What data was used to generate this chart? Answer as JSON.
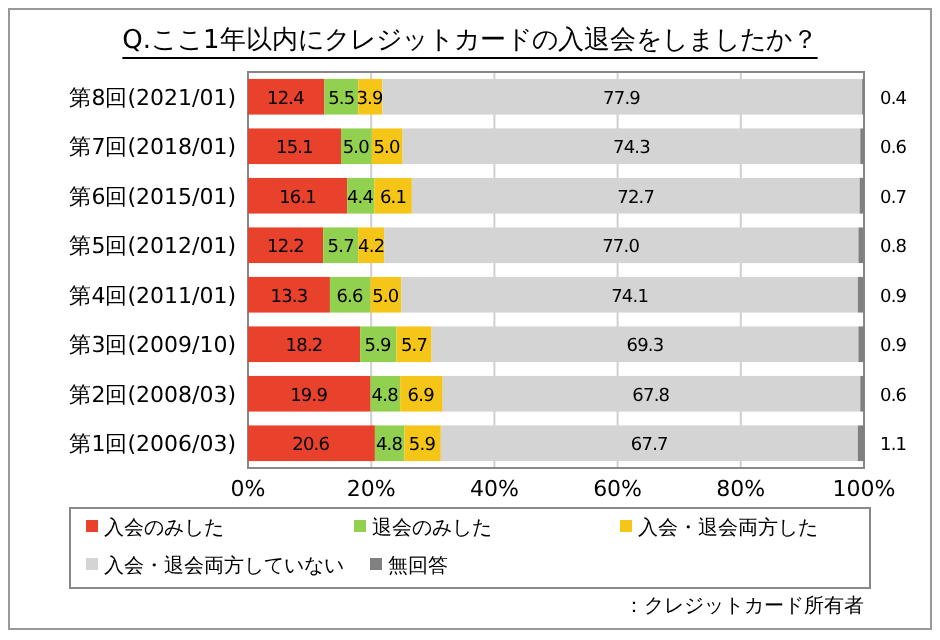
{
  "chart_data": {
    "type": "bar",
    "orientation": "horizontal",
    "stacked": true,
    "title": "Q.ここ1年以内にクレジットカードの入退会をしましたか？",
    "categories": [
      "第8回(2021/01)",
      "第7回(2018/01)",
      "第6回(2015/01)",
      "第5回(2012/01)",
      "第4回(2011/01)",
      "第3回(2009/10)",
      "第2回(2008/03)",
      "第1回(2006/03)"
    ],
    "series": [
      {
        "name": "入会のみした",
        "color": "#e8412c",
        "values": [
          12.4,
          15.1,
          16.1,
          12.2,
          13.3,
          18.2,
          19.9,
          20.6
        ],
        "value_labels": [
          "12.4",
          "15.1",
          "16.1",
          "12.2",
          "13.3",
          "18.2",
          "19.9",
          "20.6"
        ]
      },
      {
        "name": "退会のみした",
        "color": "#92d050",
        "values": [
          5.5,
          5.0,
          4.4,
          5.7,
          6.6,
          5.9,
          4.8,
          4.8
        ],
        "value_labels": [
          "5.5",
          "5.0",
          "4.4",
          "5.7",
          "6.6",
          "5.9",
          "4.8",
          "4.8"
        ]
      },
      {
        "name": "入会・退会両方した",
        "color": "#f5c518",
        "values": [
          3.9,
          5.0,
          6.1,
          4.2,
          5.0,
          5.7,
          6.9,
          5.9
        ],
        "value_labels": [
          "3.9",
          "5.0",
          "6.1",
          "4.2",
          "5.0",
          "5.7",
          "6.9",
          "5.9"
        ]
      },
      {
        "name": "入会・退会両方していない",
        "color": "#d4d4d4",
        "values": [
          77.9,
          74.3,
          72.7,
          77.0,
          74.1,
          69.3,
          67.8,
          67.7
        ],
        "value_labels": [
          "77.9",
          "74.3",
          "72.7",
          "77.0",
          "74.1",
          "69.3",
          "67.8",
          "67.7"
        ]
      },
      {
        "name": "無回答",
        "color": "#808080",
        "values": [
          0.4,
          0.6,
          0.7,
          0.8,
          0.9,
          0.9,
          0.6,
          1.1
        ],
        "value_labels": [
          "0.4",
          "0.6",
          "0.7",
          "0.8",
          "0.9",
          "0.9",
          "0.6",
          "1.1"
        ]
      }
    ],
    "xlim": [
      0,
      100
    ],
    "xticks": [
      {
        "value": 0,
        "label": "0%"
      },
      {
        "value": 20,
        "label": "20%"
      },
      {
        "value": 40,
        "label": "40%"
      },
      {
        "value": 60,
        "label": "60%"
      },
      {
        "value": 80,
        "label": "80%"
      },
      {
        "value": 100,
        "label": "100%"
      }
    ],
    "grid": "x",
    "legend": "bottom",
    "annotations": [
      "：クレジットカード所有者"
    ]
  }
}
